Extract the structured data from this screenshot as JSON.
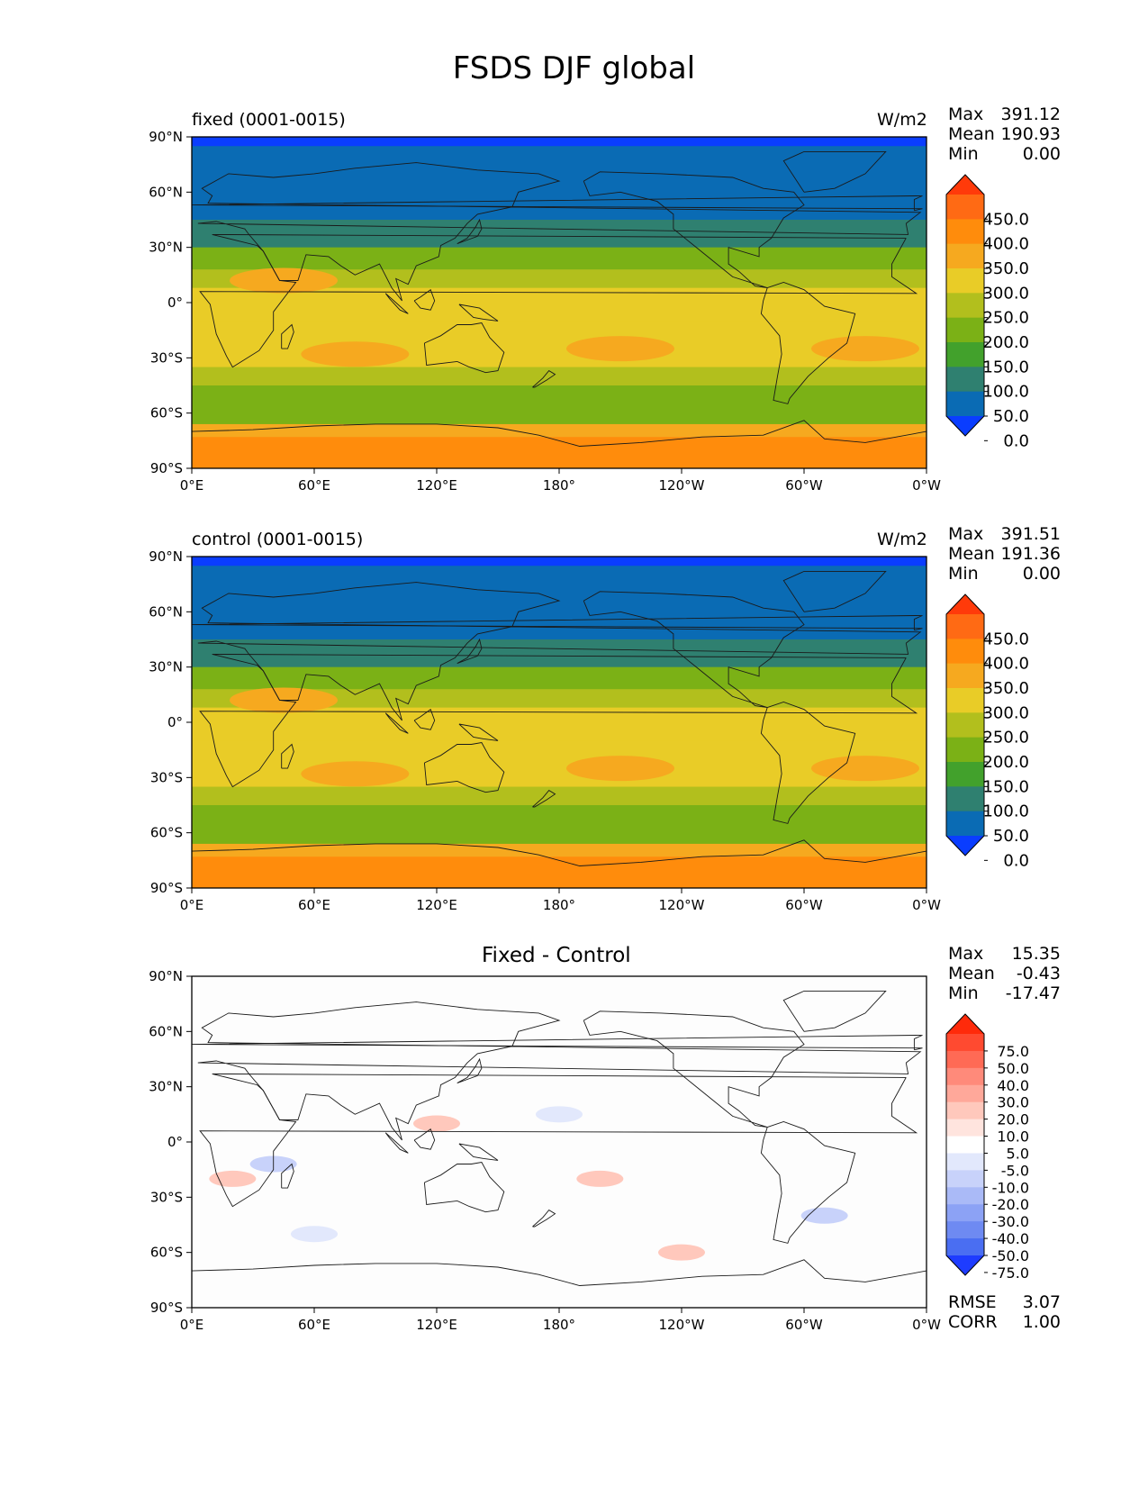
{
  "figure": {
    "title": "FSDS DJF global"
  },
  "axes": {
    "lat_ticks": [
      "90°N",
      "60°N",
      "30°N",
      "0°",
      "30°S",
      "60°S",
      "90°S"
    ],
    "lon_ticks": [
      "0°E",
      "60°E",
      "120°E",
      "180°",
      "120°W",
      "60°W",
      "0°W"
    ],
    "lat_range": [
      -90,
      90
    ],
    "lon_range": [
      0,
      360
    ]
  },
  "panels": [
    {
      "id": "fixed",
      "title_left": "fixed (0001-0015)",
      "title_center": "",
      "units": "W/m2",
      "stats": [
        {
          "label": "Max",
          "value": "391.12"
        },
        {
          "label": "Mean",
          "value": "190.93"
        },
        {
          "label": "Min",
          "value": "0.00"
        }
      ],
      "colorbar": {
        "labels": [
          "450.0",
          "400.0",
          "350.0",
          "300.0",
          "250.0",
          "200.0",
          "150.0",
          "100.0",
          "50.0",
          "0.0"
        ],
        "colors": [
          "#ff3a0a",
          "#ff6a14",
          "#ff8c0c",
          "#f6a91f",
          "#e9cc27",
          "#b2bf1d",
          "#7bb116",
          "#42a12c",
          "#2f8070",
          "#0a6bb4",
          "#0a3dff"
        ]
      },
      "bands": [
        {
          "lat_top": 90,
          "lat_bottom": 85,
          "color": "#0a3dff"
        },
        {
          "lat_top": 85,
          "lat_bottom": 45,
          "color": "#0a6bb4"
        },
        {
          "lat_top": 45,
          "lat_bottom": 30,
          "color": "#2f8070"
        },
        {
          "lat_top": 30,
          "lat_bottom": 18,
          "color": "#7bb116"
        },
        {
          "lat_top": 18,
          "lat_bottom": 8,
          "color": "#b2bf1d"
        },
        {
          "lat_top": 8,
          "lat_bottom": -10,
          "color": "#e9cc27"
        },
        {
          "lat_top": -10,
          "lat_bottom": -35,
          "color": "#e9cc27"
        },
        {
          "lat_top": -35,
          "lat_bottom": -45,
          "color": "#b2bf1d"
        },
        {
          "lat_top": -45,
          "lat_bottom": -66,
          "color": "#7bb116"
        },
        {
          "lat_top": -66,
          "lat_bottom": -73,
          "color": "#f6a91f"
        },
        {
          "lat_top": -73,
          "lat_bottom": -90,
          "color": "#ff8c0c"
        }
      ]
    },
    {
      "id": "control",
      "title_left": "control (0001-0015)",
      "title_center": "",
      "units": "W/m2",
      "stats": [
        {
          "label": "Max",
          "value": "391.51"
        },
        {
          "label": "Mean",
          "value": "191.36"
        },
        {
          "label": "Min",
          "value": "0.00"
        }
      ],
      "colorbar": {
        "labels": [
          "450.0",
          "400.0",
          "350.0",
          "300.0",
          "250.0",
          "200.0",
          "150.0",
          "100.0",
          "50.0",
          "0.0"
        ],
        "colors": [
          "#ff3a0a",
          "#ff6a14",
          "#ff8c0c",
          "#f6a91f",
          "#e9cc27",
          "#b2bf1d",
          "#7bb116",
          "#42a12c",
          "#2f8070",
          "#0a6bb4",
          "#0a3dff"
        ]
      },
      "bands": [
        {
          "lat_top": 90,
          "lat_bottom": 85,
          "color": "#0a3dff"
        },
        {
          "lat_top": 85,
          "lat_bottom": 45,
          "color": "#0a6bb4"
        },
        {
          "lat_top": 45,
          "lat_bottom": 30,
          "color": "#2f8070"
        },
        {
          "lat_top": 30,
          "lat_bottom": 18,
          "color": "#7bb116"
        },
        {
          "lat_top": 18,
          "lat_bottom": 8,
          "color": "#b2bf1d"
        },
        {
          "lat_top": 8,
          "lat_bottom": -10,
          "color": "#e9cc27"
        },
        {
          "lat_top": -10,
          "lat_bottom": -35,
          "color": "#e9cc27"
        },
        {
          "lat_top": -35,
          "lat_bottom": -45,
          "color": "#b2bf1d"
        },
        {
          "lat_top": -45,
          "lat_bottom": -66,
          "color": "#7bb116"
        },
        {
          "lat_top": -66,
          "lat_bottom": -73,
          "color": "#f6a91f"
        },
        {
          "lat_top": -73,
          "lat_bottom": -90,
          "color": "#ff8c0c"
        }
      ]
    },
    {
      "id": "diff",
      "title_left": "",
      "title_center": "Fixed - Control",
      "units": "",
      "stats": [
        {
          "label": "Max",
          "value": "15.35"
        },
        {
          "label": "Mean",
          "value": "-0.43"
        },
        {
          "label": "Min",
          "value": "-17.47"
        }
      ],
      "colorbar": {
        "labels": [
          "75.0",
          "50.0",
          "40.0",
          "30.0",
          "20.0",
          "10.0",
          "5.0",
          "-5.0",
          "-10.0",
          "-20.0",
          "-30.0",
          "-40.0",
          "-50.0",
          "-75.0"
        ],
        "colors": [
          "#ff2a0a",
          "#ff4a30",
          "#ff6a55",
          "#ff8a7a",
          "#ffa89a",
          "#ffc8bc",
          "#ffe4de",
          "#ffffff",
          "#e2e8fc",
          "#c8d2fa",
          "#aabaf7",
          "#8ca2f5",
          "#6e8af2",
          "#4a6ef2",
          "#1e3cff"
        ]
      },
      "bands": [
        {
          "lat_top": 90,
          "lat_bottom": -90,
          "color": "#fdfdfd"
        }
      ],
      "footer_stats": [
        {
          "label": "RMSE",
          "value": "3.07"
        },
        {
          "label": "CORR",
          "value": "1.00"
        }
      ]
    }
  ]
}
